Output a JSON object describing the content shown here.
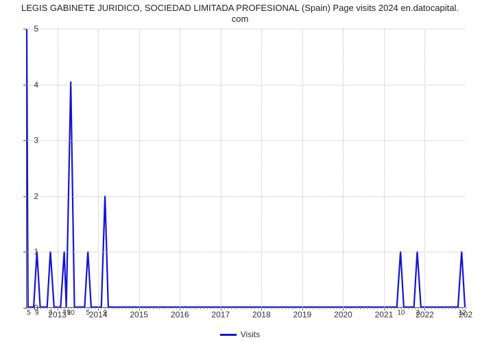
{
  "title": {
    "line1": "LEGIS GABINETE JURIDICO, SOCIEDAD LIMITADA PROFESIONAL (Spain) Page visits 2024 en.datocapital.",
    "line2": "com",
    "fontsize": 13,
    "color": "#222222"
  },
  "chart": {
    "type": "line",
    "background_color": "#ffffff",
    "grid_color": "#bdbdbd",
    "axis_color": "#555555",
    "line_color": "#1414d2",
    "line_width": 2.2,
    "x": {
      "min": 2012.25,
      "max": 2023.0,
      "year_ticks": [
        2013,
        2014,
        2015,
        2016,
        2017,
        2018,
        2019,
        2020,
        2021,
        2022
      ],
      "end_label": "202",
      "minor_step": 0.083333,
      "markers": [
        {
          "x": 2012.3,
          "label": "5"
        },
        {
          "x": 2012.5,
          "label": "9"
        },
        {
          "x": 2012.83,
          "label": "3"
        },
        {
          "x": 2013.17,
          "label": "7"
        },
        {
          "x": 2013.28,
          "label": "9"
        },
        {
          "x": 2013.33,
          "label": "10"
        },
        {
          "x": 2013.75,
          "label": "5"
        },
        {
          "x": 2014.17,
          "label": "9"
        },
        {
          "x": 2021.42,
          "label": "10"
        },
        {
          "x": 2021.83,
          "label": "2"
        },
        {
          "x": 2022.92,
          "label": "12"
        }
      ]
    },
    "y": {
      "min": 0,
      "max": 5,
      "ticks": [
        0,
        1,
        2,
        3,
        4,
        5
      ]
    },
    "series": [
      {
        "x": 2012.25,
        "y": 5
      },
      {
        "x": 2012.28,
        "y": 0
      },
      {
        "x": 2012.42,
        "y": 0
      },
      {
        "x": 2012.5,
        "y": 1
      },
      {
        "x": 2012.58,
        "y": 0
      },
      {
        "x": 2012.75,
        "y": 0
      },
      {
        "x": 2012.83,
        "y": 1
      },
      {
        "x": 2012.92,
        "y": 0
      },
      {
        "x": 2013.08,
        "y": 0
      },
      {
        "x": 2013.17,
        "y": 1
      },
      {
        "x": 2013.22,
        "y": 0
      },
      {
        "x": 2013.33,
        "y": 4.05
      },
      {
        "x": 2013.42,
        "y": 0
      },
      {
        "x": 2013.67,
        "y": 0
      },
      {
        "x": 2013.75,
        "y": 1
      },
      {
        "x": 2013.83,
        "y": 0
      },
      {
        "x": 2014.08,
        "y": 0
      },
      {
        "x": 2014.17,
        "y": 2
      },
      {
        "x": 2014.25,
        "y": 0
      },
      {
        "x": 2021.33,
        "y": 0
      },
      {
        "x": 2021.42,
        "y": 1
      },
      {
        "x": 2021.5,
        "y": 0
      },
      {
        "x": 2021.75,
        "y": 0
      },
      {
        "x": 2021.83,
        "y": 1
      },
      {
        "x": 2021.92,
        "y": 0
      },
      {
        "x": 2022.83,
        "y": 0
      },
      {
        "x": 2022.92,
        "y": 1
      },
      {
        "x": 2023.0,
        "y": 0
      }
    ]
  },
  "legend": {
    "label": "Visits",
    "color": "#1414d2"
  }
}
